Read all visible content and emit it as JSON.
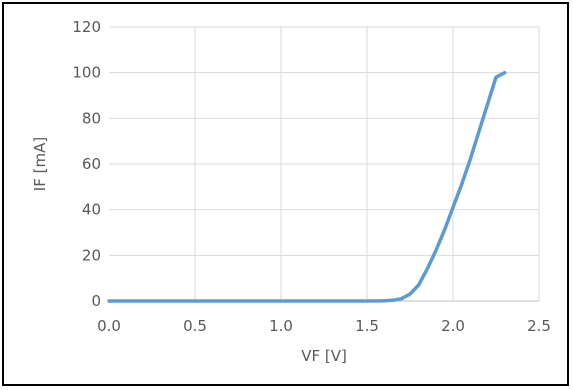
{
  "chart_data": {
    "type": "line",
    "title": "",
    "xlabel": "VF [V]",
    "ylabel": "IF [mA]",
    "xlim": [
      0,
      2.5
    ],
    "ylim": [
      0,
      120
    ],
    "x_ticks": [
      "0.0",
      "0.5",
      "1.0",
      "1.5",
      "2.0",
      "2.5"
    ],
    "y_ticks": [
      "0",
      "20",
      "40",
      "60",
      "80",
      "100",
      "120"
    ],
    "grid": true,
    "legend": "none",
    "series": [
      {
        "color": "#5b9bd5",
        "x": [
          0.0,
          0.5,
          1.0,
          1.5,
          1.6,
          1.65,
          1.7,
          1.75,
          1.8,
          1.85,
          1.9,
          1.95,
          2.0,
          2.05,
          2.1,
          2.15,
          2.2,
          2.25,
          2.3
        ],
        "y": [
          0,
          0,
          0,
          0,
          0.1,
          0.3,
          1,
          3,
          7,
          14,
          22,
          31,
          41,
          51,
          62,
          74,
          86,
          98,
          100
        ]
      }
    ]
  }
}
